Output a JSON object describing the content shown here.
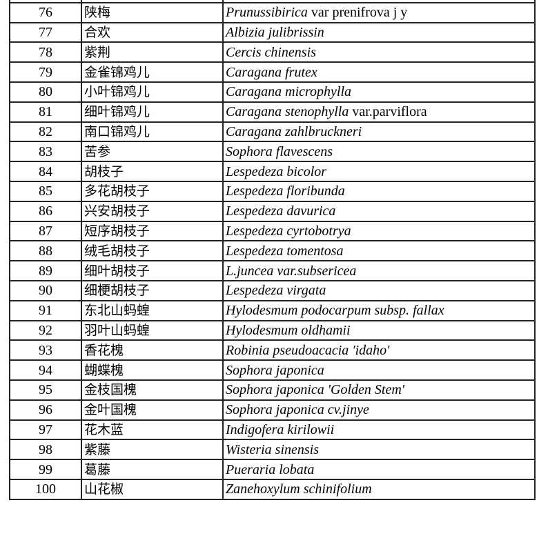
{
  "rows": [
    {
      "no": "",
      "cn": "",
      "sci": "",
      "extra": ""
    },
    {
      "no": "76",
      "cn": "陕梅",
      "sci": "Prunussibirica",
      "extra": " var prenifrova j y"
    },
    {
      "no": "77",
      "cn": "合欢",
      "sci": "Albizia julibrissin",
      "extra": ""
    },
    {
      "no": "78",
      "cn": "紫荆",
      "sci": "Cercis chinensis",
      "extra": ""
    },
    {
      "no": "79",
      "cn": "金雀锦鸡儿",
      "sci": "Caragana frutex",
      "extra": ""
    },
    {
      "no": "80",
      "cn": "小叶锦鸡儿",
      "sci": "Caragana microphylla",
      "extra": ""
    },
    {
      "no": "81",
      "cn": "细叶锦鸡儿",
      "sci": "Caragana stenophylla",
      "extra": " var.parviflora"
    },
    {
      "no": "82",
      "cn": "南口锦鸡儿",
      "sci": "Caragana zahlbruckneri",
      "extra": ""
    },
    {
      "no": "83",
      "cn": "苦参",
      "sci": "Sophora flavescens",
      "extra": ""
    },
    {
      "no": "84",
      "cn": "胡枝子",
      "sci": "Lespedeza bicolor",
      "extra": ""
    },
    {
      "no": "85",
      "cn": "多花胡枝子",
      "sci": "Lespedeza floribunda",
      "extra": ""
    },
    {
      "no": "86",
      "cn": "兴安胡枝子",
      "sci": "Lespedeza davurica",
      "extra": ""
    },
    {
      "no": "87",
      "cn": "短序胡枝子",
      "sci": "Lespedeza cyrtobotrya",
      "extra": ""
    },
    {
      "no": "88",
      "cn": "绒毛胡枝子",
      "sci": "Lespedeza tomentosa",
      "extra": ""
    },
    {
      "no": "89",
      "cn": "细叶胡枝子",
      "sci": "L.juncea var.subsericea",
      "extra": ""
    },
    {
      "no": "90",
      "cn": "细梗胡枝子",
      "sci": "Lespedeza virgata",
      "extra": ""
    },
    {
      "no": "91",
      "cn": "东北山蚂蝗",
      "sci": "Hylodesmum podocarpum subsp. fallax",
      "extra": ""
    },
    {
      "no": "92",
      "cn": "羽叶山蚂蝗",
      "sci": "Hylodesmum oldhamii",
      "extra": ""
    },
    {
      "no": "93",
      "cn": "香花槐",
      "sci": "Robinia pseudoacacia 'idaho'",
      "extra": ""
    },
    {
      "no": "94",
      "cn": "蝴蝶槐",
      "sci": "Sophora japonica",
      "extra": ""
    },
    {
      "no": "95",
      "cn": "金枝国槐",
      "sci": "Sophora japonica 'Golden Stem'",
      "extra": ""
    },
    {
      "no": "96",
      "cn": "金叶国槐",
      "sci": "Sophora japonica cv.jinye",
      "extra": ""
    },
    {
      "no": "97",
      "cn": "花木蓝",
      "sci": "Indigofera kirilowii",
      "extra": ""
    },
    {
      "no": "98",
      "cn": "紫藤",
      "sci": "Wisteria sinensis",
      "extra": ""
    },
    {
      "no": "99",
      "cn": "葛藤",
      "sci": "Pueraria lobata",
      "extra": ""
    },
    {
      "no": "100",
      "cn": "山花椒",
      "sci": "Zanehoxylum schinifolium",
      "extra": ""
    }
  ]
}
